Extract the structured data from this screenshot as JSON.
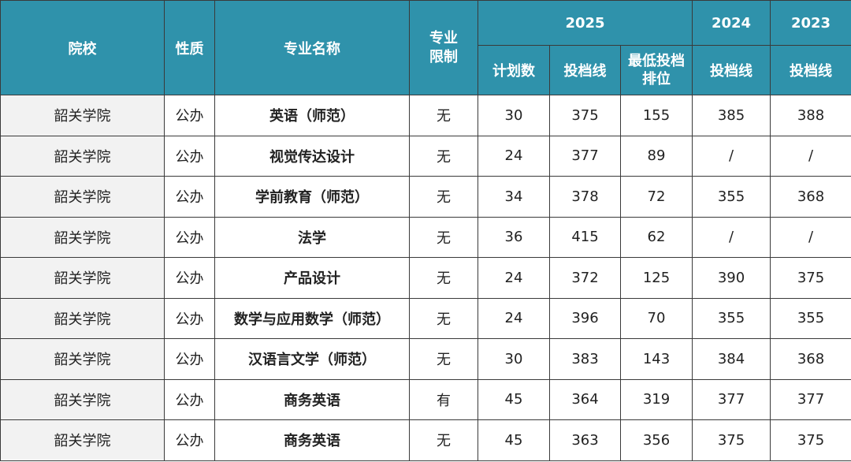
{
  "table": {
    "header": {
      "school": "院校",
      "nature": "性质",
      "major": "专业名称",
      "restriction": "专业限制",
      "years": [
        "2025",
        "2024",
        "2023"
      ],
      "sub": [
        "计划数",
        "投档线",
        "最低投档排位",
        "投档线",
        "投档线"
      ]
    },
    "rows": [
      [
        "韶关学院",
        "公办",
        "英语（师范）",
        "无",
        30,
        375,
        155,
        385,
        388
      ],
      [
        "韶关学院",
        "公办",
        "视觉传达设计",
        "无",
        24,
        377,
        89,
        "/",
        "/"
      ],
      [
        "韶关学院",
        "公办",
        "学前教育（师范）",
        "无",
        34,
        378,
        72,
        355,
        368
      ],
      [
        "韶关学院",
        "公办",
        "法学",
        "无",
        36,
        415,
        62,
        "/",
        "/"
      ],
      [
        "韶关学院",
        "公办",
        "产品设计",
        "无",
        24,
        372,
        125,
        390,
        375
      ],
      [
        "韶关学院",
        "公办",
        "数学与应用数学（师范）",
        "无",
        24,
        396,
        70,
        355,
        355
      ],
      [
        "韶关学院",
        "公办",
        "汉语言文学（师范）",
        "无",
        30,
        383,
        143,
        384,
        368
      ],
      [
        "韶关学院",
        "公办",
        "商务英语",
        "有",
        45,
        364,
        319,
        377,
        377
      ],
      [
        "韶关学院",
        "公办",
        "商务英语",
        "无",
        45,
        363,
        356,
        375,
        375
      ]
    ]
  }
}
